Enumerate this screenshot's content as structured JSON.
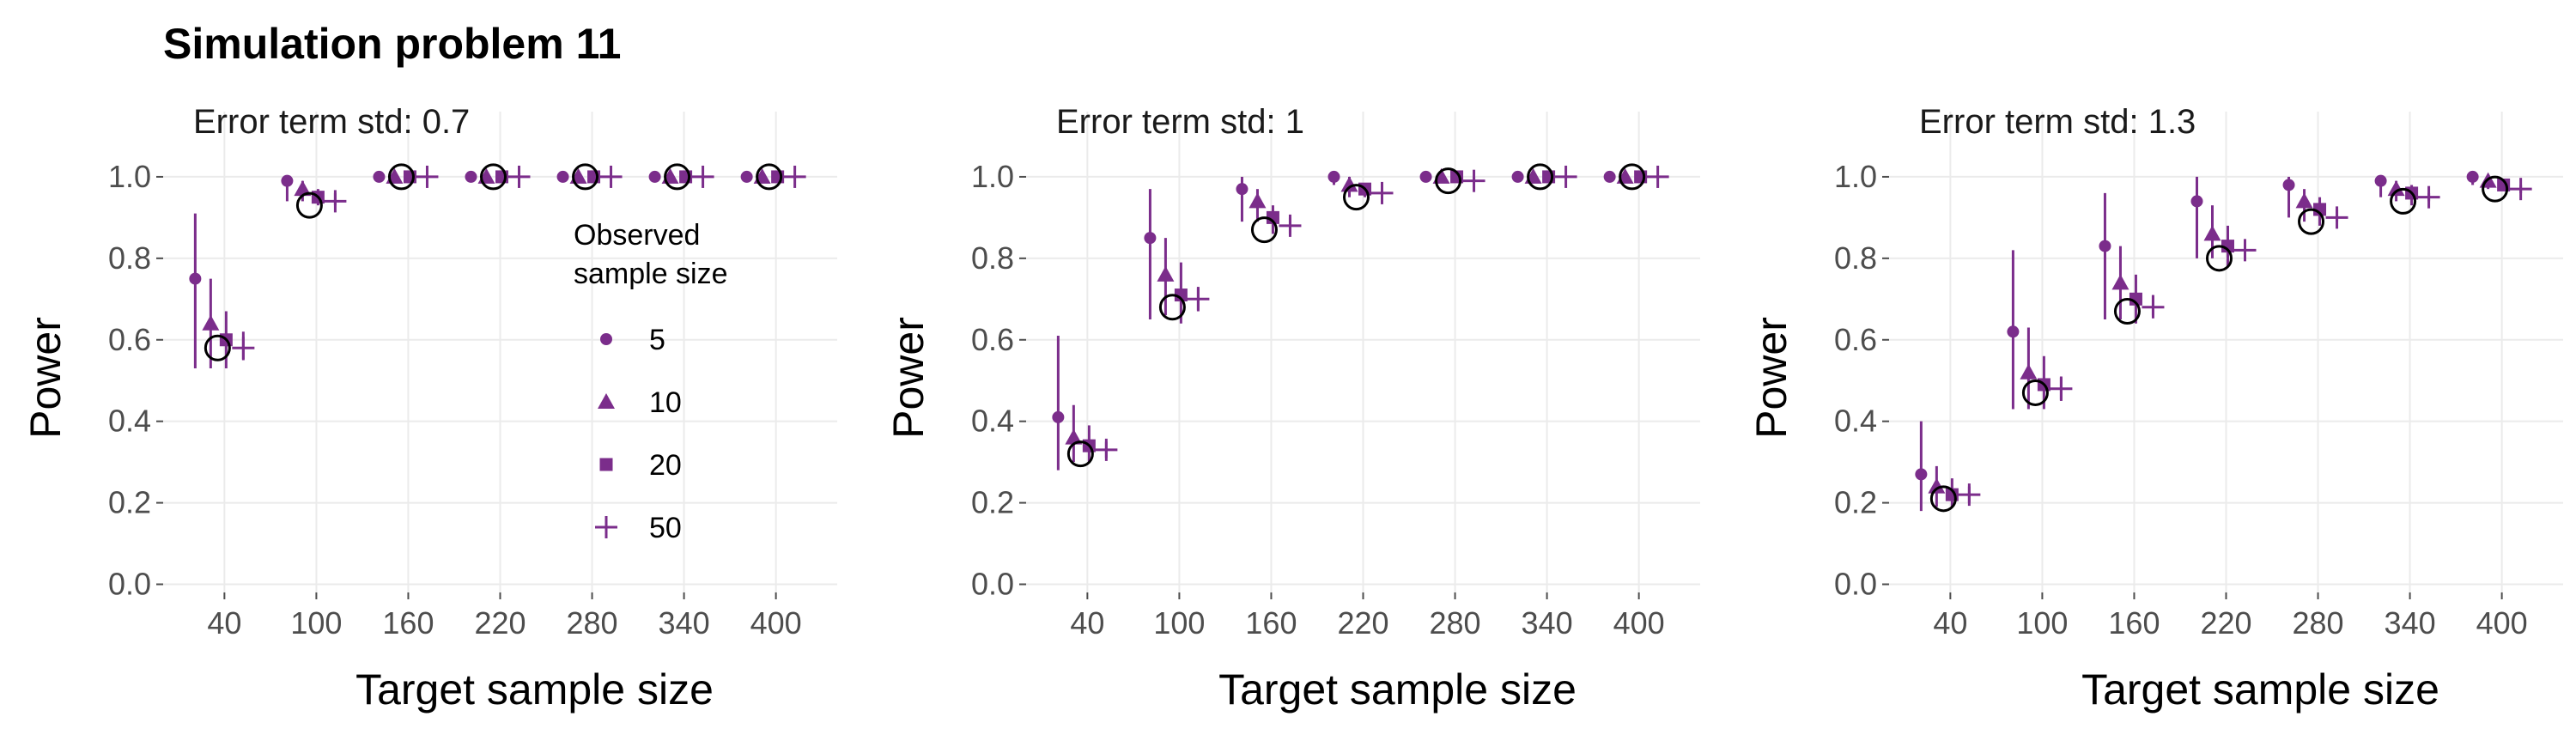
{
  "figure_title": "Simulation problem 11",
  "colors": {
    "series": "#7b2d8b",
    "reference": "#000000",
    "grid": "#ebebeb",
    "tick": "#4d4d4d"
  },
  "legend": {
    "title_line1": "Observed",
    "title_line2": "sample size",
    "entries": [
      {
        "label": "5",
        "shape": "circle"
      },
      {
        "label": "10",
        "shape": "triangle"
      },
      {
        "label": "20",
        "shape": "square"
      },
      {
        "label": "50",
        "shape": "plus"
      }
    ]
  },
  "chart_data": [
    {
      "type": "scatter",
      "facet_label": "Error term std: 0.7",
      "xlabel": "Target sample size",
      "ylabel": "Power",
      "x": [
        40,
        100,
        160,
        220,
        280,
        340,
        400
      ],
      "xticks": [
        "40",
        "100",
        "160",
        "220",
        "280",
        "340",
        "400"
      ],
      "yticks": [
        "0.0",
        "0.2",
        "0.4",
        "0.6",
        "0.8",
        "1.0"
      ],
      "ylim": [
        -0.02,
        1.16
      ],
      "grid": true,
      "reference": {
        "marker": "open-circle",
        "values": [
          0.58,
          0.93,
          1.0,
          1.0,
          1.0,
          1.0,
          1.0
        ]
      },
      "series": [
        {
          "name": "5",
          "shape": "circle",
          "values": [
            0.75,
            0.99,
            1.0,
            1.0,
            1.0,
            1.0,
            1.0
          ],
          "lower": [
            0.53,
            0.94,
            1.0,
            1.0,
            1.0,
            1.0,
            1.0
          ],
          "upper": [
            0.91,
            1.0,
            1.0,
            1.0,
            1.0,
            1.0,
            1.0
          ]
        },
        {
          "name": "10",
          "shape": "triangle",
          "values": [
            0.64,
            0.97,
            1.0,
            1.0,
            1.0,
            1.0,
            1.0
          ],
          "lower": [
            0.53,
            0.94,
            1.0,
            1.0,
            1.0,
            1.0,
            1.0
          ],
          "upper": [
            0.75,
            0.99,
            1.0,
            1.0,
            1.0,
            1.0,
            1.0
          ]
        },
        {
          "name": "20",
          "shape": "square",
          "values": [
            0.6,
            0.95,
            1.0,
            1.0,
            1.0,
            1.0,
            1.0
          ],
          "lower": [
            0.53,
            0.93,
            1.0,
            1.0,
            1.0,
            1.0,
            1.0
          ],
          "upper": [
            0.67,
            0.97,
            1.0,
            1.0,
            1.0,
            1.0,
            1.0
          ]
        },
        {
          "name": "50",
          "shape": "plus",
          "values": [
            0.58,
            0.94,
            1.0,
            1.0,
            1.0,
            1.0,
            1.0
          ],
          "lower": [
            0.55,
            0.93,
            1.0,
            1.0,
            1.0,
            1.0,
            1.0
          ],
          "upper": [
            0.62,
            0.96,
            1.0,
            1.0,
            1.0,
            1.0,
            1.0
          ]
        }
      ]
    },
    {
      "type": "scatter",
      "facet_label": "Error term std: 1",
      "xlabel": "Target sample size",
      "ylabel": "Power",
      "x": [
        40,
        100,
        160,
        220,
        280,
        340,
        400
      ],
      "xticks": [
        "40",
        "100",
        "160",
        "220",
        "280",
        "340",
        "400"
      ],
      "yticks": [
        "0.0",
        "0.2",
        "0.4",
        "0.6",
        "0.8",
        "1.0"
      ],
      "ylim": [
        -0.02,
        1.16
      ],
      "grid": true,
      "reference": {
        "marker": "open-circle",
        "values": [
          0.32,
          0.68,
          0.87,
          0.95,
          0.99,
          1.0,
          1.0
        ]
      },
      "series": [
        {
          "name": "5",
          "shape": "circle",
          "values": [
            0.41,
            0.85,
            0.97,
            1.0,
            1.0,
            1.0,
            1.0
          ],
          "lower": [
            0.28,
            0.65,
            0.89,
            0.98,
            1.0,
            1.0,
            1.0
          ],
          "upper": [
            0.61,
            0.97,
            1.0,
            1.0,
            1.0,
            1.0,
            1.0
          ]
        },
        {
          "name": "10",
          "shape": "triangle",
          "values": [
            0.36,
            0.76,
            0.94,
            0.98,
            1.0,
            1.0,
            1.0
          ],
          "lower": [
            0.3,
            0.66,
            0.89,
            0.95,
            0.99,
            1.0,
            1.0
          ],
          "upper": [
            0.44,
            0.85,
            0.97,
            1.0,
            1.0,
            1.0,
            1.0
          ]
        },
        {
          "name": "20",
          "shape": "square",
          "values": [
            0.34,
            0.71,
            0.9,
            0.97,
            1.0,
            1.0,
            1.0
          ],
          "lower": [
            0.3,
            0.64,
            0.86,
            0.95,
            0.99,
            1.0,
            1.0
          ],
          "upper": [
            0.39,
            0.79,
            0.93,
            0.98,
            1.0,
            1.0,
            1.0
          ]
        },
        {
          "name": "50",
          "shape": "plus",
          "values": [
            0.33,
            0.7,
            0.88,
            0.96,
            0.99,
            1.0,
            1.0
          ],
          "lower": [
            0.31,
            0.67,
            0.86,
            0.95,
            0.99,
            1.0,
            1.0
          ],
          "upper": [
            0.35,
            0.73,
            0.9,
            0.97,
            1.0,
            1.0,
            1.0
          ]
        }
      ]
    },
    {
      "type": "scatter",
      "facet_label": "Error term std: 1.3",
      "xlabel": "Target sample size",
      "ylabel": "Power",
      "x": [
        40,
        100,
        160,
        220,
        280,
        340,
        400
      ],
      "xticks": [
        "40",
        "100",
        "160",
        "220",
        "280",
        "340",
        "400"
      ],
      "yticks": [
        "0.0",
        "0.2",
        "0.4",
        "0.6",
        "0.8",
        "1.0"
      ],
      "ylim": [
        -0.02,
        1.16
      ],
      "grid": true,
      "reference": {
        "marker": "open-circle",
        "values": [
          0.21,
          0.47,
          0.67,
          0.8,
          0.89,
          0.94,
          0.97
        ]
      },
      "series": [
        {
          "name": "5",
          "shape": "circle",
          "values": [
            0.27,
            0.62,
            0.83,
            0.94,
            0.98,
            0.99,
            1.0
          ],
          "lower": [
            0.18,
            0.43,
            0.65,
            0.8,
            0.9,
            0.95,
            0.98
          ],
          "upper": [
            0.4,
            0.82,
            0.96,
            1.0,
            1.0,
            1.0,
            1.0
          ]
        },
        {
          "name": "10",
          "shape": "triangle",
          "values": [
            0.24,
            0.52,
            0.74,
            0.86,
            0.94,
            0.97,
            0.99
          ],
          "lower": [
            0.19,
            0.43,
            0.65,
            0.8,
            0.89,
            0.94,
            0.97
          ],
          "upper": [
            0.29,
            0.63,
            0.83,
            0.93,
            0.97,
            0.99,
            1.0
          ]
        },
        {
          "name": "20",
          "shape": "square",
          "values": [
            0.22,
            0.49,
            0.7,
            0.83,
            0.92,
            0.96,
            0.98
          ],
          "lower": [
            0.19,
            0.43,
            0.64,
            0.78,
            0.88,
            0.93,
            0.97
          ],
          "upper": [
            0.26,
            0.56,
            0.76,
            0.88,
            0.95,
            0.98,
            0.99
          ]
        },
        {
          "name": "50",
          "shape": "plus",
          "values": [
            0.22,
            0.48,
            0.68,
            0.82,
            0.9,
            0.95,
            0.97
          ],
          "lower": [
            0.2,
            0.45,
            0.66,
            0.8,
            0.89,
            0.94,
            0.96
          ],
          "upper": [
            0.24,
            0.51,
            0.71,
            0.84,
            0.92,
            0.96,
            0.98
          ]
        }
      ]
    }
  ]
}
